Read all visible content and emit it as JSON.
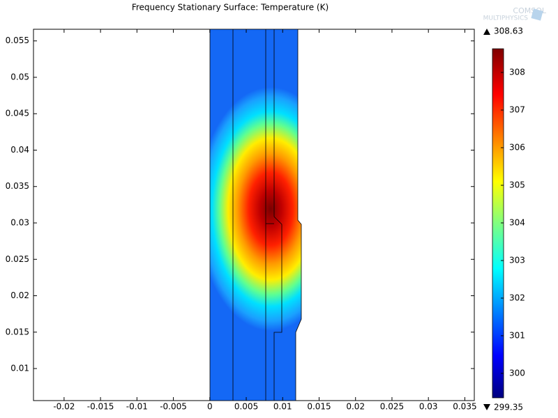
{
  "chart_data": {
    "type": "surface",
    "title": "Frequency Stationary Surface: Temperature (K)",
    "logo": [
      "COMSOL",
      "MULTIPHYSICS"
    ],
    "xlim": [
      -0.0242,
      0.0363
    ],
    "xticks": [
      -0.02,
      -0.015,
      -0.01,
      -0.005,
      0,
      0.005,
      0.01,
      0.015,
      0.02,
      0.025,
      0.03,
      0.035
    ],
    "ylim": [
      0.0056,
      0.0566
    ],
    "yticks": [
      0.01,
      0.015,
      0.02,
      0.025,
      0.03,
      0.035,
      0.04,
      0.045,
      0.05,
      0.055
    ],
    "colorbar": {
      "clim": [
        299.35,
        308.63
      ],
      "ticks": [
        300,
        301,
        302,
        303,
        304,
        305,
        306,
        307,
        308
      ],
      "max": 308.63,
      "min": 299.35,
      "colormap": "jet"
    }
  }
}
